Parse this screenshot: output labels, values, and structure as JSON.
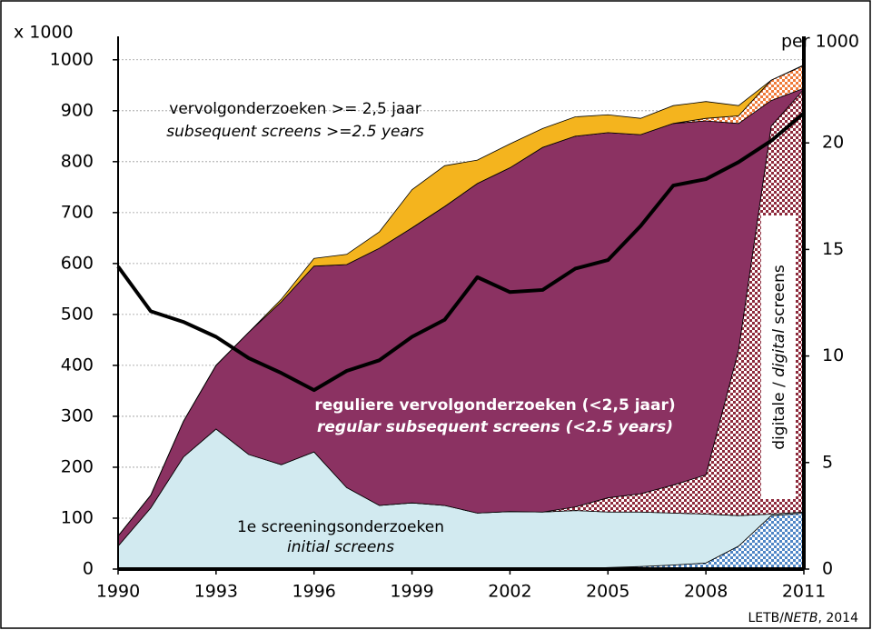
{
  "chart_data": {
    "type": "stacked_area",
    "y_label": "x 1000",
    "y2_label": "per 1000",
    "x": [
      1990,
      1991,
      1992,
      1993,
      1994,
      1995,
      1996,
      1997,
      1998,
      1999,
      2000,
      2001,
      2002,
      2003,
      2004,
      2005,
      2006,
      2007,
      2008,
      2009,
      2010,
      2011
    ],
    "xlim": [
      1990,
      2011
    ],
    "xticks": [
      1990,
      1993,
      1996,
      1999,
      2002,
      2005,
      2008,
      2011
    ],
    "ylim": [
      0,
      1046
    ],
    "yticks": [
      0,
      100,
      200,
      300,
      400,
      500,
      600,
      700,
      800,
      900,
      1000
    ],
    "y2lim": [
      0,
      25
    ],
    "y2ticks": [
      0,
      5,
      10,
      15,
      20
    ],
    "grid": true,
    "series": [
      {
        "color": "#4f86c6",
        "pattern": "checker",
        "values": [
          0,
          0,
          0,
          0,
          0,
          0,
          0,
          0,
          0,
          0,
          0,
          0,
          0,
          0,
          0,
          3,
          5,
          8,
          12,
          45,
          105,
          110
        ]
      },
      {
        "color": "#d2eaf0",
        "values": [
          45,
          120,
          220,
          275,
          225,
          205,
          230,
          160,
          125,
          130,
          125,
          110,
          113,
          112,
          115,
          109,
          107,
          102,
          96,
          60,
          3,
          2
        ]
      },
      {
        "color": "#8e2a3c",
        "pattern": "checker",
        "values": [
          0,
          0,
          0,
          0,
          0,
          0,
          0,
          0,
          0,
          0,
          0,
          0,
          0,
          0,
          7,
          28,
          36,
          55,
          77,
          325,
          762,
          830
        ]
      },
      {
        "color": "#8b3262",
        "values": [
          20,
          25,
          70,
          125,
          240,
          320,
          365,
          438,
          505,
          540,
          587,
          647,
          675,
          716,
          728,
          717,
          705,
          710,
          695,
          445,
          50,
          2
        ]
      },
      {
        "color": "#ef7a3a",
        "pattern": "checker",
        "values": [
          0,
          0,
          0,
          0,
          0,
          0,
          0,
          0,
          0,
          0,
          0,
          0,
          0,
          0,
          0,
          0,
          0,
          0,
          5,
          15,
          40,
          45
        ]
      },
      {
        "color": "#f4b41e",
        "values": [
          0,
          0,
          0,
          0,
          0,
          5,
          15,
          20,
          32,
          75,
          80,
          46,
          47,
          37,
          38,
          35,
          32,
          35,
          33,
          20,
          0,
          1
        ]
      },
      {
        "color": "#000000",
        "type": "line",
        "axis": "y2",
        "values": [
          14.2,
          12.1,
          11.6,
          10.9,
          9.9,
          9.2,
          8.4,
          9.3,
          9.8,
          10.9,
          11.7,
          13.7,
          13.0,
          13.1,
          14.1,
          14.5,
          16.1,
          18.0,
          18.3,
          19.1,
          20.1,
          21.4
        ]
      }
    ],
    "annotations": {
      "subsequent_nl": "vervolgonderzoeken >= 2,5 jaar",
      "subsequent_en": "subsequent screens >=2.5 years",
      "regular_nl": "reguliere vervolgonderzoeken  (<2,5 jaar)",
      "regular_en": "regular subsequent screens (<2.5 years)",
      "initial_nl": "1e screeningsonderzoeken",
      "initial_en": "initial screens",
      "digital": [
        "digitale / ",
        "digital",
        "  screens"
      ]
    },
    "source": [
      "LETB/",
      "NETB",
      ", 2014"
    ]
  }
}
